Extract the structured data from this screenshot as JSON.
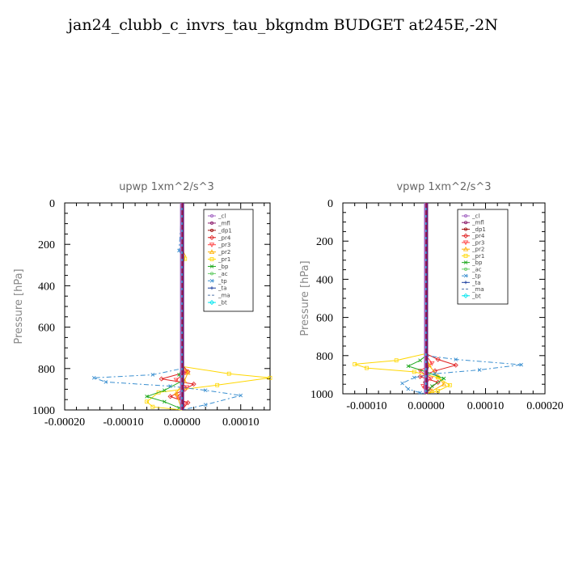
{
  "title": "jan24_clubb_c_invrs_tau_bkgndm  BUDGET at245E,-2N",
  "chart_data": [
    {
      "type": "line",
      "title": "upwp   1xm^2/s^3",
      "ylabel": "Pressure [hPa]",
      "ylim": [
        1000,
        0
      ],
      "xlim": [
        -0.0002,
        0.00015
      ],
      "yticks": [
        0,
        200,
        400,
        600,
        800,
        1000
      ],
      "ytick_labels": [
        "0",
        "200",
        "400",
        "600",
        "800",
        "1000"
      ],
      "xticks": [
        -0.0002,
        -0.0001,
        0,
        0.0001
      ],
      "xtick_labels": [
        "-0.00020",
        "-0.00010",
        "0.00000",
        "0.00010"
      ],
      "legend_position": "top-right",
      "series": [
        {
          "name": "_cl",
          "color": "#a060c0",
          "dash": "",
          "marker": "circle",
          "points": [
            [
              0,
              0
            ],
            [
              0,
              200
            ],
            [
              0,
              500
            ],
            [
              0,
              800
            ],
            [
              0,
              900
            ],
            [
              0,
              1000
            ]
          ]
        },
        {
          "name": "_mfl",
          "color": "#8b1a6b",
          "dash": "",
          "marker": "circle",
          "points": [
            [
              0,
              0
            ],
            [
              0,
              800
            ],
            [
              1e-06,
              870
            ],
            [
              0,
              1000
            ]
          ]
        },
        {
          "name": "_dp1",
          "color": "#a01010",
          "dash": "",
          "marker": "circle",
          "points": [
            [
              0,
              0
            ],
            [
              0,
              800
            ],
            [
              2e-06,
              860
            ],
            [
              -2e-06,
              940
            ],
            [
              0,
              1000
            ]
          ]
        },
        {
          "name": "_pr4",
          "color": "#e02020",
          "dash": "",
          "marker": "diamond",
          "points": [
            [
              0,
              0
            ],
            [
              0,
              780
            ],
            [
              1e-05,
              815
            ],
            [
              -3.5e-05,
              850
            ],
            [
              2e-05,
              875
            ],
            [
              5e-06,
              900
            ],
            [
              -2e-05,
              935
            ],
            [
              1e-05,
              965
            ],
            [
              0,
              1000
            ]
          ]
        },
        {
          "name": "_pr3",
          "color": "#ff4040",
          "dash": "",
          "marker": "triangle-down",
          "points": [
            [
              0,
              0
            ],
            [
              0,
              790
            ],
            [
              5e-06,
              820
            ],
            [
              -1e-05,
              855
            ],
            [
              8e-06,
              890
            ],
            [
              -8e-06,
              935
            ],
            [
              4e-06,
              970
            ],
            [
              0,
              1000
            ]
          ]
        },
        {
          "name": "_pr2",
          "color": "#ffb000",
          "dash": "",
          "marker": "triangle",
          "points": [
            [
              0,
              0
            ],
            [
              3e-06,
              250
            ],
            [
              0,
              790
            ],
            [
              1e-05,
              820
            ],
            [
              4e-06,
              860
            ],
            [
              -1e-05,
              920
            ],
            [
              0,
              1000
            ]
          ]
        },
        {
          "name": "_pr1",
          "color": "#ffd700",
          "dash": "",
          "marker": "square",
          "points": [
            [
              0,
              0
            ],
            [
              0,
              240
            ],
            [
              5e-06,
              270
            ],
            [
              0,
              300
            ],
            [
              0,
              790
            ],
            [
              8e-05,
              825
            ],
            [
              0.00015,
              845
            ],
            [
              6e-05,
              880
            ],
            [
              -4e-05,
              915
            ],
            [
              -6e-05,
              960
            ],
            [
              -5e-05,
              985
            ],
            [
              0,
              1000
            ]
          ]
        },
        {
          "name": "_bp",
          "color": "#22aa22",
          "dash": "",
          "marker": "x",
          "points": [
            [
              0,
              0
            ],
            [
              0,
              800
            ],
            [
              -5e-06,
              830
            ],
            [
              0,
              860
            ],
            [
              -3e-05,
              905
            ],
            [
              -6e-05,
              935
            ],
            [
              -3e-05,
              960
            ],
            [
              -5e-06,
              990
            ],
            [
              0,
              1000
            ]
          ]
        },
        {
          "name": "_ac",
          "color": "#66cc66",
          "dash": "",
          "marker": "circle",
          "points": [
            [
              0,
              0
            ],
            [
              0,
              1000
            ]
          ]
        },
        {
          "name": "_tp",
          "color": "#3a8fd0",
          "dash": "6,3,2,3",
          "marker": "x",
          "points": [
            [
              0,
              0
            ],
            [
              -5e-06,
              230
            ],
            [
              0,
              260
            ],
            [
              0,
              800
            ],
            [
              -5e-05,
              830
            ],
            [
              -0.00015,
              845
            ],
            [
              -0.00013,
              865
            ],
            [
              -2e-05,
              885
            ],
            [
              4e-05,
              905
            ],
            [
              0.0001,
              930
            ],
            [
              4e-05,
              975
            ],
            [
              0,
              1000
            ]
          ]
        },
        {
          "name": "_ta",
          "color": "#1c3f9f",
          "dash": "",
          "marker": "plus",
          "points": [
            [
              0,
              0
            ],
            [
              0,
              1000
            ]
          ]
        },
        {
          "name": "_ma",
          "color": "#5577aa",
          "dash": "5,3",
          "marker": "",
          "points": [
            [
              0,
              0
            ],
            [
              0,
              1000
            ]
          ]
        },
        {
          "name": "_bt",
          "color": "#00e5ee",
          "dash": "",
          "marker": "diamond",
          "points": [
            [
              0,
              0
            ],
            [
              0,
              1000
            ]
          ]
        }
      ]
    },
    {
      "type": "line",
      "title": "vpwp   1xm^2/s^3",
      "ylabel": "Pressure [hPa]",
      "ylim": [
        1000,
        0
      ],
      "xlim": [
        -0.00014,
        0.0002
      ],
      "yticks": [
        0,
        200,
        400,
        600,
        800,
        1000
      ],
      "ytick_labels": [
        "0",
        "200",
        "400",
        "600",
        "800",
        "1000"
      ],
      "xticks": [
        -0.0001,
        0,
        0.0001,
        0.0002
      ],
      "xtick_labels": [
        "-0.00010",
        "0.00000",
        "0.00010",
        "0.00020"
      ],
      "legend_position": "top-right",
      "series": [
        {
          "name": "_cl",
          "color": "#a060c0",
          "dash": "",
          "marker": "circle",
          "points": [
            [
              0,
              0
            ],
            [
              0,
              200
            ],
            [
              0,
              500
            ],
            [
              0,
              800
            ],
            [
              0,
              900
            ],
            [
              0,
              1000
            ]
          ]
        },
        {
          "name": "_mfl",
          "color": "#8b1a6b",
          "dash": "",
          "marker": "circle",
          "points": [
            [
              0,
              0
            ],
            [
              0,
              800
            ],
            [
              1e-06,
              870
            ],
            [
              0,
              1000
            ]
          ]
        },
        {
          "name": "_dp1",
          "color": "#a01010",
          "dash": "",
          "marker": "circle",
          "points": [
            [
              0,
              0
            ],
            [
              0,
              800
            ],
            [
              2e-06,
              860
            ],
            [
              -2e-06,
              940
            ],
            [
              0,
              1000
            ]
          ]
        },
        {
          "name": "_pr4",
          "color": "#e02020",
          "dash": "",
          "marker": "diamond",
          "points": [
            [
              0,
              0
            ],
            [
              0,
              790
            ],
            [
              2e-05,
              820
            ],
            [
              5e-05,
              850
            ],
            [
              1.5e-05,
              880
            ],
            [
              -1e-05,
              910
            ],
            [
              2e-05,
              940
            ],
            [
              5e-06,
              975
            ],
            [
              0,
              1000
            ]
          ]
        },
        {
          "name": "_pr3",
          "color": "#ff4040",
          "dash": "",
          "marker": "triangle-down",
          "points": [
            [
              0,
              0
            ],
            [
              0,
              800
            ],
            [
              1e-05,
              840
            ],
            [
              -1e-05,
              880
            ],
            [
              8e-06,
              920
            ],
            [
              -5e-06,
              960
            ],
            [
              0,
              1000
            ]
          ]
        },
        {
          "name": "_pr2",
          "color": "#ffb000",
          "dash": "",
          "marker": "triangle",
          "points": [
            [
              0,
              0
            ],
            [
              0,
              800
            ],
            [
              5e-06,
              850
            ],
            [
              2e-05,
              910
            ],
            [
              3e-05,
              950
            ],
            [
              1e-05,
              985
            ],
            [
              0,
              1000
            ]
          ]
        },
        {
          "name": "_pr1",
          "color": "#ffd700",
          "dash": "",
          "marker": "square",
          "points": [
            [
              0,
              0
            ],
            [
              0,
              790
            ],
            [
              -5e-05,
              825
            ],
            [
              -0.00012,
              845
            ],
            [
              -0.0001,
              865
            ],
            [
              -2e-05,
              885
            ],
            [
              2e-05,
              915
            ],
            [
              4e-05,
              955
            ],
            [
              2e-05,
              985
            ],
            [
              0,
              1000
            ]
          ]
        },
        {
          "name": "_bp",
          "color": "#22aa22",
          "dash": "",
          "marker": "x",
          "points": [
            [
              0,
              0
            ],
            [
              0,
              800
            ],
            [
              -1e-05,
              825
            ],
            [
              -3e-05,
              855
            ],
            [
              0,
              885
            ],
            [
              3e-05,
              920
            ],
            [
              1e-05,
              960
            ],
            [
              0,
              1000
            ]
          ]
        },
        {
          "name": "_ac",
          "color": "#66cc66",
          "dash": "",
          "marker": "circle",
          "points": [
            [
              0,
              0
            ],
            [
              0,
              1000
            ]
          ]
        },
        {
          "name": "_tp",
          "color": "#3a8fd0",
          "dash": "6,3,2,3",
          "marker": "x",
          "points": [
            [
              0,
              0
            ],
            [
              0,
              800
            ],
            [
              5e-05,
              820
            ],
            [
              0.00016,
              848
            ],
            [
              9e-05,
              875
            ],
            [
              1.5e-05,
              895
            ],
            [
              -2e-05,
              915
            ],
            [
              -4e-05,
              945
            ],
            [
              -3e-05,
              975
            ],
            [
              -1e-05,
              995
            ],
            [
              0,
              1000
            ]
          ]
        },
        {
          "name": "_ta",
          "color": "#1c3f9f",
          "dash": "",
          "marker": "plus",
          "points": [
            [
              0,
              0
            ],
            [
              0,
              1000
            ]
          ]
        },
        {
          "name": "_ma",
          "color": "#5577aa",
          "dash": "5,3",
          "marker": "",
          "points": [
            [
              0,
              0
            ],
            [
              0,
              1000
            ]
          ]
        },
        {
          "name": "_bt",
          "color": "#00e5ee",
          "dash": "",
          "marker": "diamond",
          "points": [
            [
              0,
              0
            ],
            [
              0,
              1000
            ]
          ]
        }
      ]
    }
  ]
}
